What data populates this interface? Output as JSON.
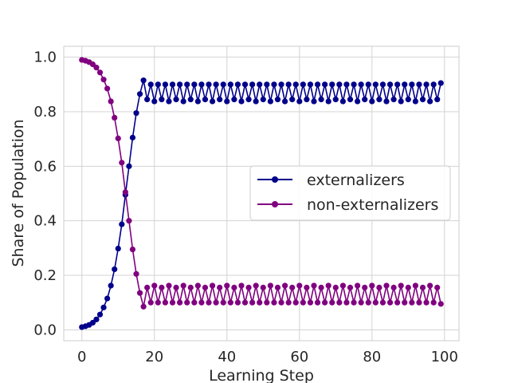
{
  "chart_data": {
    "type": "line",
    "title": "",
    "xlabel": "Learning Step",
    "ylabel": "Share of Population",
    "xlim": [
      -5,
      104
    ],
    "ylim": [
      -0.04,
      1.04
    ],
    "xticks": [
      0,
      20,
      40,
      60,
      80,
      100
    ],
    "yticks": [
      0.0,
      0.2,
      0.4,
      0.6,
      0.8,
      1.0
    ],
    "xtick_labels": [
      "0",
      "20",
      "40",
      "60",
      "80",
      "100"
    ],
    "ytick_labels": [
      "0.0",
      "0.2",
      "0.4",
      "0.6",
      "0.8",
      "1.0"
    ],
    "grid": true,
    "legend_position": "center-right",
    "series": [
      {
        "name": "externalizers",
        "color": "#00008b",
        "marker": "circle",
        "x": [
          0,
          1,
          2,
          3,
          4,
          5,
          6,
          7,
          8,
          9,
          10,
          11,
          12,
          13,
          14,
          15,
          16,
          17,
          18,
          19,
          20,
          21,
          22,
          23,
          24,
          25,
          26,
          27,
          28,
          29,
          30,
          31,
          32,
          33,
          34,
          35,
          36,
          37,
          38,
          39,
          40,
          41,
          42,
          43,
          44,
          45,
          46,
          47,
          48,
          49,
          50,
          51,
          52,
          53,
          54,
          55,
          56,
          57,
          58,
          59,
          60,
          61,
          62,
          63,
          64,
          65,
          66,
          67,
          68,
          69,
          70,
          71,
          72,
          73,
          74,
          75,
          76,
          77,
          78,
          79,
          80,
          81,
          82,
          83,
          84,
          85,
          86,
          87,
          88,
          89,
          90,
          91,
          92,
          93,
          94,
          95,
          96,
          97,
          98,
          99
        ],
        "values": [
          0.01,
          0.013,
          0.018,
          0.026,
          0.038,
          0.056,
          0.082,
          0.115,
          0.162,
          0.222,
          0.298,
          0.387,
          0.495,
          0.6,
          0.705,
          0.795,
          0.865,
          0.915,
          0.845,
          0.9,
          0.838,
          0.9,
          0.845,
          0.9,
          0.838,
          0.9,
          0.845,
          0.9,
          0.838,
          0.9,
          0.845,
          0.9,
          0.838,
          0.9,
          0.845,
          0.9,
          0.838,
          0.9,
          0.845,
          0.9,
          0.838,
          0.9,
          0.845,
          0.9,
          0.838,
          0.9,
          0.845,
          0.9,
          0.838,
          0.9,
          0.845,
          0.9,
          0.838,
          0.9,
          0.845,
          0.9,
          0.838,
          0.9,
          0.845,
          0.9,
          0.838,
          0.9,
          0.845,
          0.9,
          0.838,
          0.9,
          0.845,
          0.9,
          0.838,
          0.9,
          0.845,
          0.9,
          0.838,
          0.9,
          0.845,
          0.9,
          0.838,
          0.9,
          0.845,
          0.9,
          0.838,
          0.9,
          0.845,
          0.9,
          0.838,
          0.9,
          0.845,
          0.9,
          0.838,
          0.9,
          0.845,
          0.9,
          0.838,
          0.9,
          0.845,
          0.9,
          0.838,
          0.9,
          0.845,
          0.905
        ]
      },
      {
        "name": "non-externalizers",
        "color": "#800080",
        "marker": "circle",
        "x": [
          0,
          1,
          2,
          3,
          4,
          5,
          6,
          7,
          8,
          9,
          10,
          11,
          12,
          13,
          14,
          15,
          16,
          17,
          18,
          19,
          20,
          21,
          22,
          23,
          24,
          25,
          26,
          27,
          28,
          29,
          30,
          31,
          32,
          33,
          34,
          35,
          36,
          37,
          38,
          39,
          40,
          41,
          42,
          43,
          44,
          45,
          46,
          47,
          48,
          49,
          50,
          51,
          52,
          53,
          54,
          55,
          56,
          57,
          58,
          59,
          60,
          61,
          62,
          63,
          64,
          65,
          66,
          67,
          68,
          69,
          70,
          71,
          72,
          73,
          74,
          75,
          76,
          77,
          78,
          79,
          80,
          81,
          82,
          83,
          84,
          85,
          86,
          87,
          88,
          89,
          90,
          91,
          92,
          93,
          94,
          95,
          96,
          97,
          98,
          99
        ],
        "values": [
          0.99,
          0.987,
          0.982,
          0.974,
          0.962,
          0.944,
          0.918,
          0.885,
          0.838,
          0.778,
          0.702,
          0.613,
          0.505,
          0.4,
          0.295,
          0.205,
          0.135,
          0.085,
          0.155,
          0.1,
          0.162,
          0.1,
          0.155,
          0.1,
          0.162,
          0.1,
          0.155,
          0.1,
          0.162,
          0.1,
          0.155,
          0.1,
          0.162,
          0.1,
          0.155,
          0.1,
          0.162,
          0.1,
          0.155,
          0.1,
          0.162,
          0.1,
          0.155,
          0.1,
          0.162,
          0.1,
          0.155,
          0.1,
          0.162,
          0.1,
          0.155,
          0.1,
          0.162,
          0.1,
          0.155,
          0.1,
          0.162,
          0.1,
          0.155,
          0.1,
          0.162,
          0.1,
          0.155,
          0.1,
          0.162,
          0.1,
          0.155,
          0.1,
          0.162,
          0.1,
          0.155,
          0.1,
          0.162,
          0.1,
          0.155,
          0.1,
          0.162,
          0.1,
          0.155,
          0.1,
          0.162,
          0.1,
          0.155,
          0.1,
          0.162,
          0.1,
          0.155,
          0.1,
          0.162,
          0.1,
          0.155,
          0.1,
          0.162,
          0.1,
          0.155,
          0.1,
          0.162,
          0.1,
          0.155,
          0.095
        ]
      }
    ]
  }
}
